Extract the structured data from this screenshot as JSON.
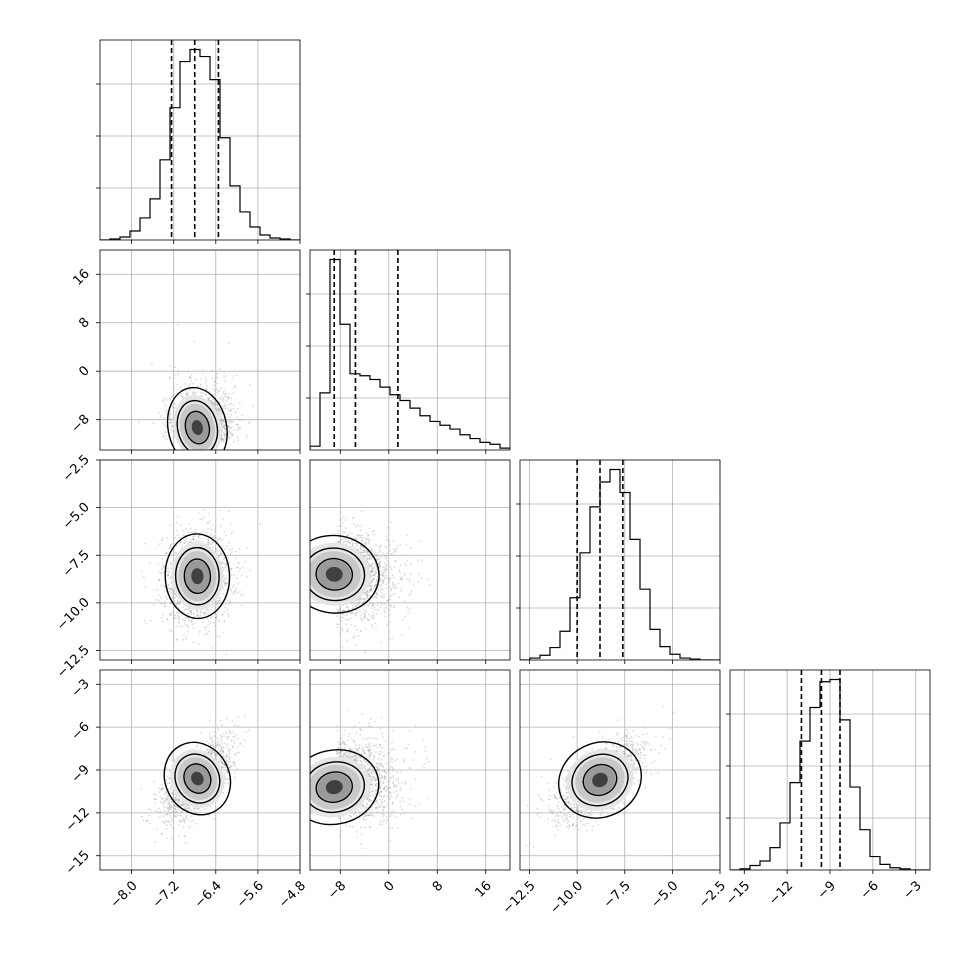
{
  "chart_data": {
    "type": "corner",
    "title": "",
    "grid": true,
    "parameters": [
      {
        "range": [
          -8.6,
          -4.8
        ],
        "ticks": [
          -8.0,
          -7.2,
          -6.4,
          -5.6,
          -4.8
        ],
        "tick_labels": [
          "−8.0",
          "−7.2",
          "−6.4",
          "−5.6",
          "−4.8"
        ],
        "quantiles": [
          -7.24,
          -6.8,
          -6.35
        ],
        "hist_edges_start": -8.6,
        "hist_bin_width": 0.19,
        "hist_counts": [
          0,
          1,
          3,
          9,
          22,
          41,
          80,
          132,
          178,
          190,
          183,
          160,
          102,
          54,
          28,
          13,
          5,
          2,
          1,
          0
        ]
      },
      {
        "range": [
          -13.0,
          20.0
        ],
        "ticks": [
          -8,
          0,
          8,
          16
        ],
        "tick_labels": [
          "−8",
          "0",
          "8",
          "16"
        ],
        "quantiles": [
          -9.0,
          -5.5,
          1.5
        ],
        "hist_edges_start": -13.0,
        "hist_bin_width": 1.65,
        "hist_counts": [
          2,
          30,
          100,
          66,
          40,
          39,
          37,
          33,
          29,
          26,
          22,
          18,
          15,
          13,
          11,
          8,
          6,
          4,
          3,
          1
        ]
      },
      {
        "range": [
          -13.0,
          -2.5
        ],
        "ticks": [
          -12.5,
          -10.0,
          -7.5,
          -5.0,
          -2.5
        ],
        "tick_labels": [
          "−12.5",
          "−10.0",
          "−7.5",
          "−5.0",
          "−2.5"
        ],
        "quantiles": [
          -10.0,
          -8.8,
          -7.6
        ],
        "hist_edges_start": -13.0,
        "hist_bin_width": 0.525,
        "hist_counts": [
          0,
          2,
          5,
          13,
          30,
          65,
          112,
          160,
          186,
          199,
          175,
          126,
          74,
          32,
          14,
          6,
          2,
          1,
          0,
          0
        ]
      },
      {
        "range": [
          -16.0,
          -2.0
        ],
        "ticks": [
          -15,
          -12,
          -9,
          -6,
          -3
        ],
        "tick_labels": [
          "−15",
          "−12",
          "−9",
          "−6",
          "−3"
        ],
        "quantiles": [
          -11.0,
          -9.6,
          -8.3
        ],
        "hist_edges_start": -16.0,
        "hist_bin_width": 0.7,
        "hist_counts": [
          0,
          1,
          4,
          8,
          20,
          42,
          78,
          115,
          145,
          168,
          170,
          134,
          74,
          36,
          12,
          5,
          2,
          1,
          0,
          0
        ]
      }
    ],
    "y_axis_ticks": {
      "row1": [
        -8,
        0,
        8,
        16
      ],
      "row2": [
        -12.5,
        -10.0,
        -7.5,
        -5.0,
        -2.5
      ],
      "row3": [
        -15,
        -12,
        -9,
        -6,
        -3
      ]
    },
    "pairs": [
      {
        "row": 1,
        "col": 0,
        "center": [
          -6.65,
          -8.4
        ],
        "sigma": [
          0.3,
          3.6
        ],
        "rho": 0.3,
        "mode": [
          -6.75,
          -9.3
        ],
        "skew_y": "up"
      },
      {
        "row": 2,
        "col": 0,
        "center": [
          -6.75,
          -8.7
        ],
        "sigma": [
          0.33,
          1.2
        ],
        "rho": 0.05,
        "mode": [
          -6.75,
          -8.6
        ],
        "skew_y": "none"
      },
      {
        "row": 2,
        "col": 1,
        "center": [
          -5.0,
          -8.6
        ],
        "sigma": [
          4.0,
          1.1
        ],
        "rho": -0.15,
        "mode": [
          -9.0,
          -8.5
        ],
        "skew_x": "right"
      },
      {
        "row": 3,
        "col": 0,
        "center": [
          -6.75,
          -9.7
        ],
        "sigma": [
          0.33,
          1.4
        ],
        "rho": 0.65,
        "mode": [
          -6.75,
          -9.6
        ],
        "skew_y": "none"
      },
      {
        "row": 3,
        "col": 1,
        "center": [
          -5.0,
          -9.7
        ],
        "sigma": [
          4.0,
          1.4
        ],
        "rho": 0.3,
        "mode": [
          -9.0,
          -10.2
        ],
        "skew_x": "right"
      },
      {
        "row": 3,
        "col": 2,
        "center": [
          -8.8,
          -9.7
        ],
        "sigma": [
          1.2,
          1.4
        ],
        "rho": 0.65,
        "mode": [
          -8.8,
          -9.7
        ],
        "skew_y": "none"
      }
    ]
  }
}
